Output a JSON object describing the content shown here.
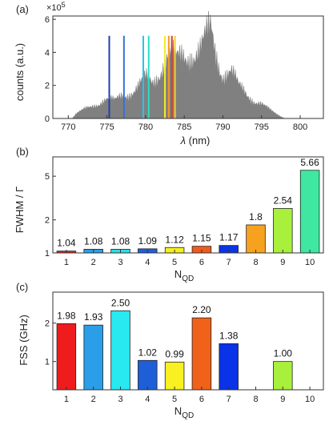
{
  "chart_data": [
    {
      "type": "area",
      "panel_label": "(a)",
      "xlabel_symbol": "λ",
      "xlabel_unit": " (nm)",
      "ylabel": "counts (a.u.)",
      "exponent_base": "×10",
      "exponent_power": "5",
      "xlim": [
        768,
        803
      ],
      "ylim": [
        0,
        6.2
      ],
      "xticks": [
        770,
        775,
        780,
        785,
        790,
        795,
        800
      ],
      "yticks": [
        0,
        2,
        4,
        6
      ],
      "spectrum_color": "#808080",
      "spectrum": {
        "x": [
          770.5,
          771,
          772,
          773,
          774,
          775,
          776,
          777,
          778,
          779,
          780,
          781,
          782,
          783,
          784,
          785,
          786,
          787,
          788,
          788.5,
          789,
          790,
          791,
          792,
          793,
          794,
          795,
          796,
          797,
          798
        ],
        "y": [
          0.0,
          0.3,
          0.6,
          0.9,
          1.1,
          1.3,
          1.2,
          1.7,
          1.8,
          2.1,
          2.7,
          2.6,
          3.6,
          4.4,
          4.0,
          4.5,
          4.7,
          4.6,
          5.6,
          6.2,
          4.8,
          3.2,
          3.3,
          2.2,
          1.8,
          1.3,
          1.0,
          0.6,
          0.3,
          0.0
        ]
      },
      "lines": [
        {
          "x": 775.3,
          "color": "#1f3fa8"
        },
        {
          "x": 777.2,
          "color": "#3a6fd8"
        },
        {
          "x": 779.7,
          "color": "#29c3ea"
        },
        {
          "x": 780.4,
          "color": "#22e0c8"
        },
        {
          "x": 782.5,
          "color": "#f4ec2a"
        },
        {
          "x": 783.0,
          "color": "#f29a22"
        },
        {
          "x": 783.4,
          "color": "#e4382a"
        },
        {
          "x": 783.8,
          "color": "#f0d12c"
        }
      ]
    },
    {
      "type": "bar",
      "panel_label": "(b)",
      "ylabel_main": "FWHM / ",
      "ylabel_symbol": "Γ",
      "xlabel_main": "N",
      "xlabel_sub": "QD",
      "scale": "log",
      "ylim": [
        1,
        7.5
      ],
      "yticks": [
        1,
        2,
        5
      ],
      "categories": [
        "1",
        "2",
        "3",
        "4",
        "5",
        "6",
        "7",
        "8",
        "9",
        "10"
      ],
      "values": [
        1.04,
        1.08,
        1.08,
        1.09,
        1.12,
        1.15,
        1.17,
        1.8,
        2.54,
        5.66
      ],
      "labels": [
        "1.04",
        "1.08",
        "1.08",
        "1.09",
        "1.12",
        "1.15",
        "1.17",
        "1.8",
        "2.54",
        "5.66"
      ],
      "colors": [
        "#e2231a",
        "#2aa0e6",
        "#27e0e6",
        "#1a5fe0",
        "#f6f01c",
        "#f05a1c",
        "#0a34e6",
        "#f7a21e",
        "#a8f03c",
        "#3ee8a0"
      ]
    },
    {
      "type": "bar",
      "panel_label": "(c)",
      "ylabel": "FSS (GHz)",
      "xlabel_main": "N",
      "xlabel_sub": "QD",
      "scale": "log",
      "ylim": [
        0.6,
        3.5
      ],
      "yticks": [
        1,
        2
      ],
      "categories": [
        "1",
        "2",
        "3",
        "4",
        "5",
        "6",
        "7",
        "8",
        "9",
        "10"
      ],
      "values": [
        1.98,
        1.93,
        2.5,
        1.02,
        0.99,
        2.2,
        1.38,
        null,
        1.0,
        null
      ],
      "labels": [
        "1.98",
        "1.93",
        "2.50",
        "1.02",
        "0.99",
        "2.20",
        "1.38",
        "",
        "1.00",
        ""
      ],
      "colors": [
        "#ee1c1c",
        "#2a9ee8",
        "#28e8f0",
        "#1e5fd8",
        "#f8f020",
        "#f0621a",
        "#0a32e8",
        "#f7a21e",
        "#a8f03c",
        "#3ee8a0"
      ]
    }
  ]
}
